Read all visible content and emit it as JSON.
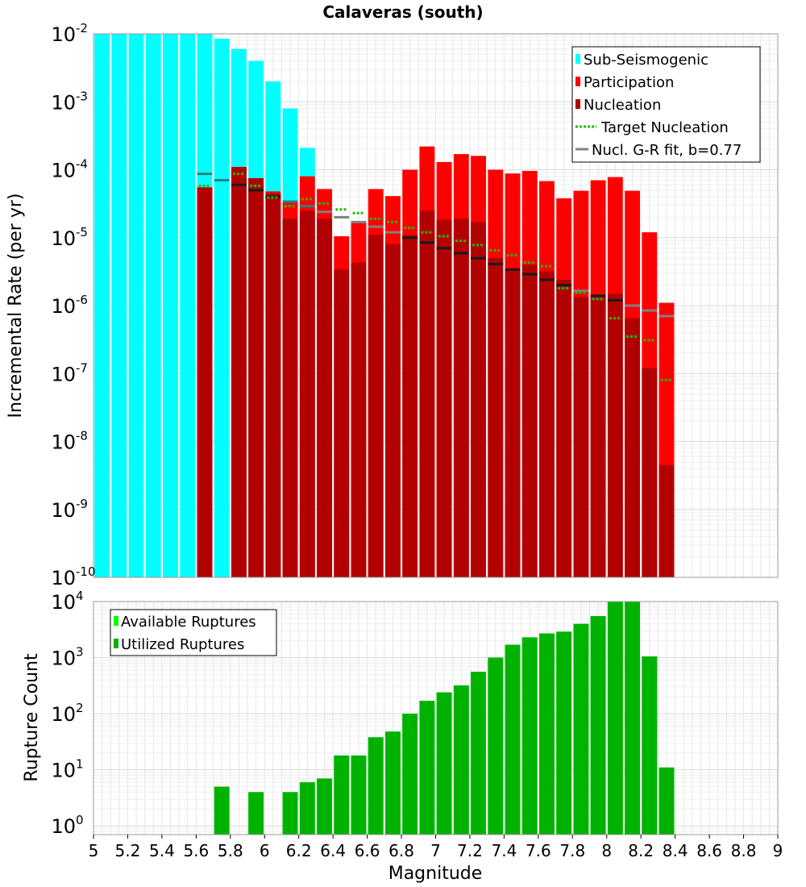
{
  "chart_data": [
    {
      "type": "bar",
      "title": "Calaveras (south)",
      "xlabel": "",
      "ylabel": "Incremental Rate (per yr)",
      "yscale": "log",
      "xlim": [
        5,
        9
      ],
      "ylim": [
        1e-10,
        0.01
      ],
      "y_ticks": [
        {
          "base": "10",
          "exp": "-10"
        },
        {
          "base": "10",
          "exp": "-9"
        },
        {
          "base": "10",
          "exp": "-8"
        },
        {
          "base": "10",
          "exp": "-7"
        },
        {
          "base": "10",
          "exp": "-6"
        },
        {
          "base": "10",
          "exp": "-5"
        },
        {
          "base": "10",
          "exp": "-4"
        },
        {
          "base": "10",
          "exp": "-3"
        },
        {
          "base": "10",
          "exp": "-2"
        }
      ],
      "grid": true,
      "legend_position": "top-right",
      "legend": [
        {
          "label": "Sub-Seismogenic",
          "color": "#00ffff",
          "style": "box"
        },
        {
          "label": "Participation",
          "color": "#ff0000",
          "style": "box"
        },
        {
          "label": "Nucleation",
          "color": "#b20000",
          "style": "box"
        },
        {
          "label": "Target Nucleation",
          "color": "#22bb00",
          "style": "dotted"
        },
        {
          "label": "Nucl. G-R fit, b=0.77",
          "color": "#808080",
          "style": "line"
        }
      ],
      "magnitudes": [
        5.05,
        5.15,
        5.25,
        5.35,
        5.45,
        5.55,
        5.65,
        5.75,
        5.85,
        5.95,
        6.05,
        6.15,
        6.25,
        6.35,
        6.45,
        6.55,
        6.65,
        6.75,
        6.85,
        6.95,
        7.05,
        7.15,
        7.25,
        7.35,
        7.45,
        7.55,
        7.65,
        7.75,
        7.85,
        7.95,
        8.05,
        8.15,
        8.25,
        8.35
      ],
      "series": [
        {
          "name": "Sub-Seismogenic",
          "color": "#00ffff",
          "values": [
            0.01,
            0.01,
            0.01,
            0.01,
            0.01,
            0.01,
            0.01,
            0.0085,
            0.006,
            0.004,
            0.002,
            0.0008,
            0.00021,
            null,
            null,
            null,
            null,
            null,
            null,
            null,
            null,
            null,
            null,
            null,
            null,
            null,
            null,
            null,
            null,
            null,
            null,
            null,
            null,
            null
          ]
        },
        {
          "name": "Participation",
          "color": "#ff0000",
          "values": [
            null,
            null,
            null,
            null,
            null,
            null,
            5.5e-05,
            null,
            0.00011,
            7.5e-05,
            4.8e-05,
            3.3e-05,
            8e-05,
            5.2e-05,
            1.05e-05,
            1.65e-05,
            5.2e-05,
            4.1e-05,
            0.0001,
            0.00022,
            0.00013,
            0.00017,
            0.00016,
            0.0001,
            8.8e-05,
            9.6e-05,
            6.8e-05,
            3.8e-05,
            4.9e-05,
            7e-05,
            7.8e-05,
            4.9e-05,
            1.2e-05,
            1.1e-06
          ]
        },
        {
          "name": "Nucleation",
          "color": "#b20000",
          "values": [
            null,
            null,
            null,
            null,
            null,
            null,
            5.5e-05,
            null,
            0.00011,
            7.5e-05,
            4.5e-05,
            1.9e-05,
            2.5e-05,
            1.9e-05,
            3.4e-06,
            4.3e-06,
            1.1e-05,
            8e-06,
            1.1e-05,
            2.5e-05,
            1.85e-05,
            1.9e-05,
            1.7e-05,
            5e-06,
            3.5e-06,
            4e-06,
            3.2e-06,
            2.4e-06,
            1.35e-06,
            1.4e-06,
            1.5e-06,
            6.5e-07,
            1.2e-07,
            4.5e-09
          ]
        },
        {
          "name": "Target Nucleation",
          "color": "#22bb00",
          "values": [
            null,
            null,
            null,
            null,
            null,
            null,
            5.8e-05,
            null,
            8.7e-05,
            5.8e-05,
            3.9e-05,
            2.9e-05,
            3.7e-05,
            3.2e-05,
            2.6e-05,
            2.3e-05,
            1.9e-05,
            1.7e-05,
            1.4e-05,
            1.2e-05,
            1.05e-05,
            9e-06,
            7.8e-06,
            6.5e-06,
            5.5e-06,
            4.3e-06,
            3.8e-06,
            1.8e-06,
            1.55e-06,
            1.25e-06,
            6.5e-07,
            3.5e-07,
            3.1e-07,
            8e-08
          ]
        },
        {
          "name": "Nucl. G-R fit, b=0.77",
          "color": "#808080",
          "values": [
            null,
            null,
            null,
            null,
            null,
            null,
            8.7e-05,
            7e-05,
            6e-05,
            5e-05,
            4e-05,
            3.4e-05,
            2.9e-05,
            2.4e-05,
            2e-05,
            1.7e-05,
            1.45e-05,
            1.2e-05,
            1e-05,
            8.5e-06,
            7e-06,
            5.9e-06,
            5e-06,
            4.1e-06,
            3.4e-06,
            2.9e-06,
            2.4e-06,
            2e-06,
            1.65e-06,
            1.4e-06,
            1.2e-06,
            1e-06,
            8.5e-07,
            7e-07
          ]
        }
      ]
    },
    {
      "type": "bar",
      "title": "",
      "xlabel": "Magnitude",
      "ylabel": "Rupture Count",
      "yscale": "log",
      "xlim": [
        5,
        9
      ],
      "ylim": [
        0.7,
        10000
      ],
      "y_ticks": [
        {
          "base": "10",
          "exp": "0"
        },
        {
          "base": "10",
          "exp": "1"
        },
        {
          "base": "10",
          "exp": "2"
        },
        {
          "base": "10",
          "exp": "3"
        },
        {
          "base": "10",
          "exp": "4"
        }
      ],
      "x_ticks": [
        "5",
        "5.2",
        "5.4",
        "5.6",
        "5.8",
        "6",
        "6.2",
        "6.4",
        "6.6",
        "6.8",
        "7",
        "7.2",
        "7.4",
        "7.6",
        "7.8",
        "8",
        "8.2",
        "8.4",
        "8.6",
        "8.8",
        "9"
      ],
      "grid": true,
      "legend_position": "top-left",
      "legend": [
        {
          "label": "Available Ruptures",
          "color": "#00ff00",
          "style": "box"
        },
        {
          "label": "Utilized Ruptures",
          "color": "#00b200",
          "style": "box"
        }
      ],
      "magnitudes": [
        5.75,
        5.95,
        6.15,
        6.25,
        6.35,
        6.45,
        6.55,
        6.65,
        6.75,
        6.85,
        6.95,
        7.05,
        7.15,
        7.25,
        7.35,
        7.45,
        7.55,
        7.65,
        7.75,
        7.85,
        7.95,
        8.05,
        8.15,
        8.25,
        8.35
      ],
      "series": [
        {
          "name": "Available Ruptures",
          "color": "#00ff00",
          "values": [
            5,
            4,
            4,
            6,
            7,
            18,
            18,
            38,
            48,
            100,
            170,
            240,
            320,
            560,
            1000,
            1700,
            2300,
            2700,
            2900,
            4000,
            5500,
            10000,
            10000,
            1050,
            11
          ]
        },
        {
          "name": "Utilized Ruptures",
          "color": "#00b200",
          "values": [
            5,
            4,
            4,
            6,
            7,
            18,
            18,
            38,
            48,
            100,
            170,
            240,
            320,
            560,
            1000,
            1700,
            2300,
            2700,
            2900,
            4000,
            5500,
            10000,
            10000,
            1050,
            11
          ]
        }
      ]
    }
  ]
}
